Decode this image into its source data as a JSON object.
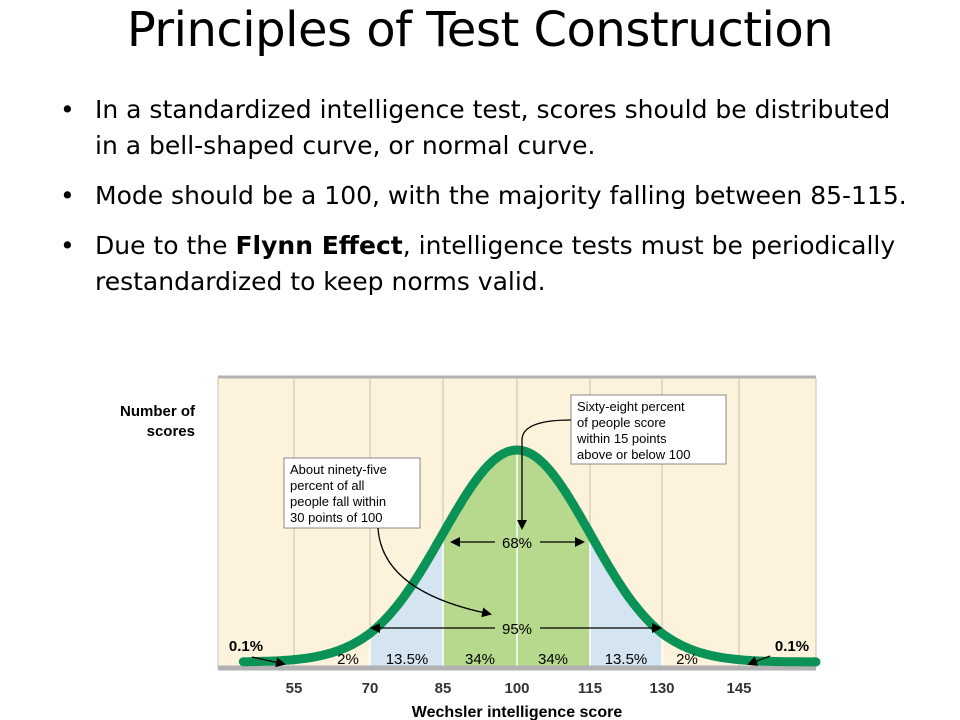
{
  "slide": {
    "title": "Principles of Test Construction",
    "bullets": [
      {
        "text_before": "In a standardized intelligence test, scores should be distributed in a bell-shaped curve, or normal curve.",
        "bold": "",
        "text_after": ""
      },
      {
        "text_before": "Mode should be a 100, with the majority falling between 85-115.",
        "bold": "",
        "text_after": ""
      },
      {
        "text_before": "Due to the ",
        "bold": "Flynn Effect",
        "text_after": ", intelligence tests must be periodically restandardized to keep norms valid."
      }
    ]
  },
  "figure": {
    "ylabel_line1": "Number of",
    "ylabel_line2": "scores",
    "xlabel": "Wechsler intelligence score",
    "x_ticks": [
      "55",
      "70",
      "85",
      "100",
      "115",
      "130",
      "145"
    ],
    "region_labels": [
      "0.1%",
      "2%",
      "13.5%",
      "34%",
      "34%",
      "13.5%",
      "2%",
      "0.1%"
    ],
    "span_68": "68%",
    "span_95": "95%",
    "callout_68": [
      "Sixty-eight percent",
      "of people score",
      "within 15 points",
      "above or below 100"
    ],
    "callout_95": [
      "About ninety-five",
      "percent of all",
      "people fall within",
      "30 points of 100"
    ],
    "colors": {
      "background": "#fdf3dc",
      "curve": "#0b9256",
      "inner_fill": "#b7d98e",
      "outer_fill": "#d4e4f0",
      "grid": "#c8bfb0",
      "axis": "#b2b2b2"
    }
  }
}
